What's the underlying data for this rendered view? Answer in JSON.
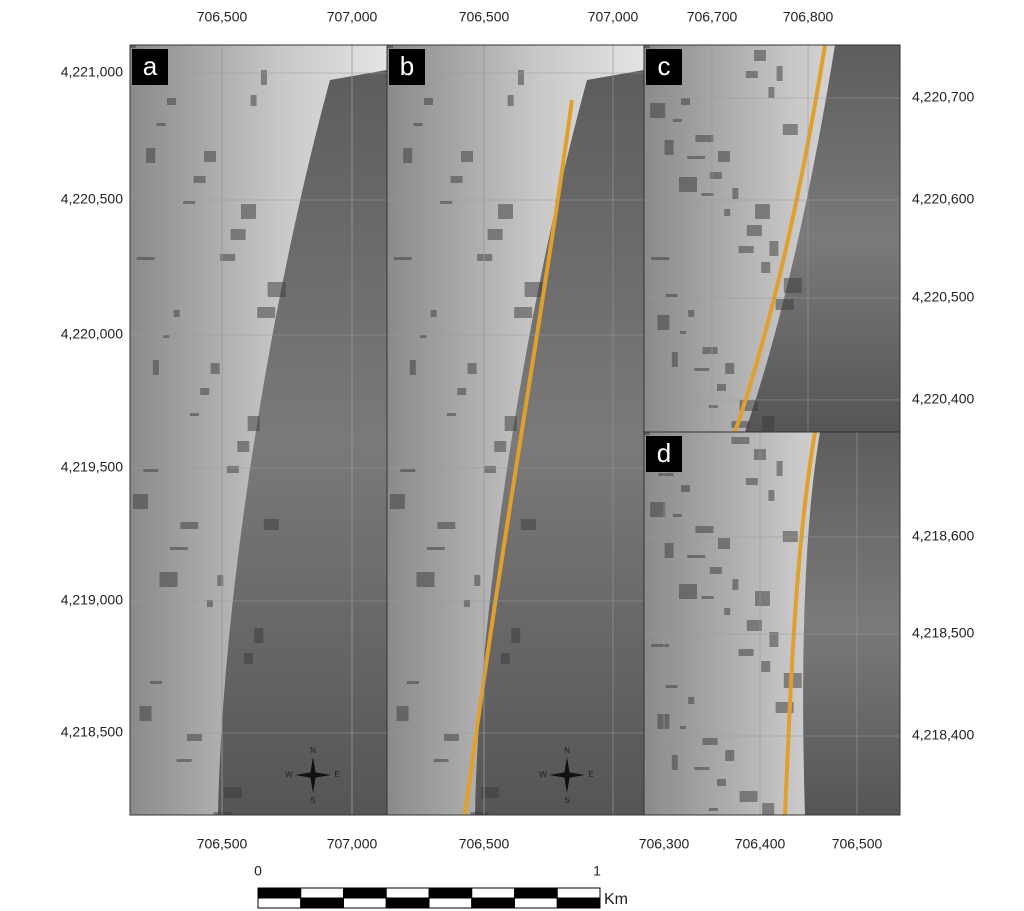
{
  "panels": [
    {
      "label": "a",
      "top_x_labels": [
        "706,500",
        "707,000"
      ],
      "bottom_x_labels": [
        "706,500",
        "707,000"
      ],
      "left_y_labels": [
        "4,221,000",
        "4,220,500",
        "4,220,000",
        "4,219,500",
        "4,219,000",
        "4,218,500"
      ]
    },
    {
      "label": "b",
      "top_x_labels": [
        "706,500",
        "707,000"
      ],
      "bottom_x_labels": [
        "706,500"
      ]
    },
    {
      "label": "c",
      "top_x_labels": [
        "706,700",
        "706,800"
      ],
      "right_y_labels": [
        "4,220,700",
        "4,220,600",
        "4,220,500",
        "4,220,400"
      ]
    },
    {
      "label": "d",
      "bottom_x_labels": [
        "706,300",
        "706,400",
        "706,500"
      ],
      "right_y_labels": [
        "4,218,600",
        "4,218,500",
        "4,218,400"
      ]
    }
  ],
  "compass_labels": [
    "N",
    "E",
    "S",
    "W"
  ],
  "scale_bar": {
    "labels": [
      "0",
      "1"
    ],
    "unit": "Km"
  }
}
